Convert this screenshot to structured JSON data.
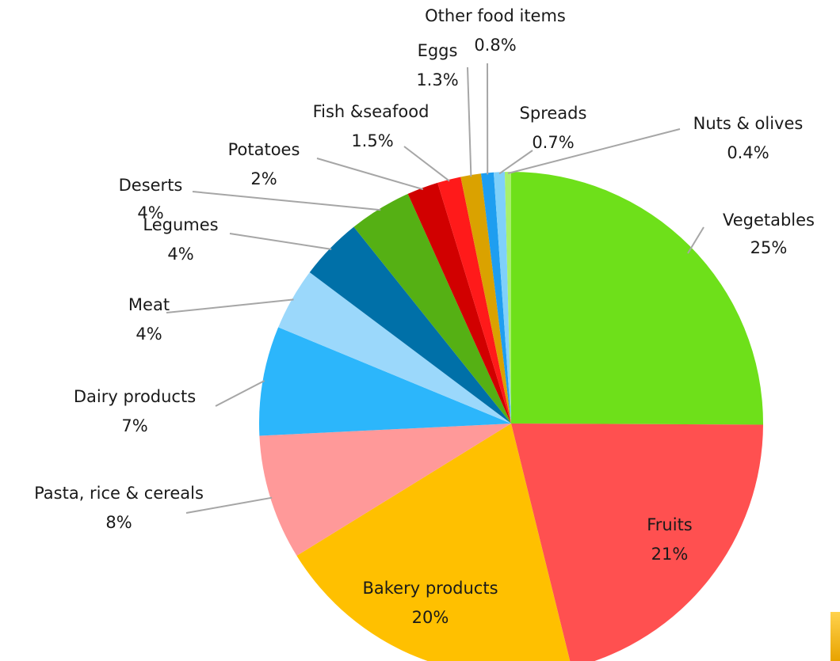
{
  "chart_data": {
    "type": "pie",
    "title": "",
    "start_angle_deg": 0,
    "direction": "clockwise",
    "slices": [
      {
        "category": "Vegetables",
        "value": 25,
        "value_label": "25%",
        "color": "#6ee01a"
      },
      {
        "category": "Fruits",
        "value": 21,
        "value_label": "21%",
        "color": "#ff5050"
      },
      {
        "category": "Bakery products",
        "value": 20,
        "value_label": "20%",
        "color": "#ffc000"
      },
      {
        "category": "Pasta, rice & cereals",
        "value": 8,
        "value_label": "8%",
        "color": "#ff9999"
      },
      {
        "category": "Dairy products",
        "value": 7,
        "value_label": "7%",
        "color": "#2cb6fb"
      },
      {
        "category": "Meat",
        "value": 4,
        "value_label": "4%",
        "color": "#9bd8fb"
      },
      {
        "category": "Legumes",
        "value": 4,
        "value_label": "4%",
        "color": "#0070a8"
      },
      {
        "category": "Deserts",
        "value": 4,
        "value_label": "4%",
        "color": "#55b014"
      },
      {
        "category": "Potatoes",
        "value": 2,
        "value_label": "2%",
        "color": "#d10000"
      },
      {
        "category": "Fish &seafood",
        "value": 1.5,
        "value_label": "1.5%",
        "color": "#ff1a1a"
      },
      {
        "category": "Eggs",
        "value": 1.3,
        "value_label": "1.3%",
        "color": "#daa200"
      },
      {
        "category": "Other food items",
        "value": 0.8,
        "value_label": "0.8%",
        "color": "#1e9ef0"
      },
      {
        "category": "Spreads",
        "value": 0.7,
        "value_label": "0.7%",
        "color": "#7fd0fa"
      },
      {
        "category": "Nuts & olives",
        "value": 0.4,
        "value_label": "0.4%",
        "color": "#a7f06b"
      }
    ]
  }
}
